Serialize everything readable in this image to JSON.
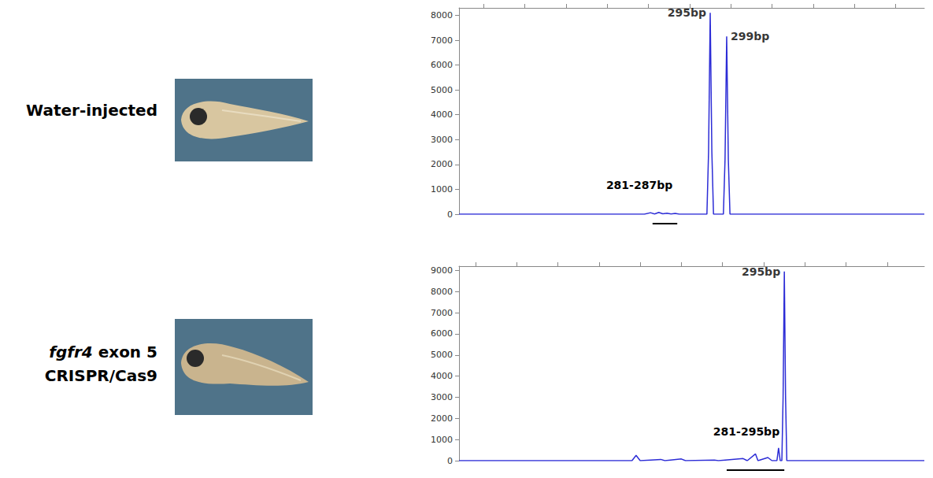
{
  "row_labels": [
    [
      [
        {
          "text": "Water-injected"
        }
      ]
    ],
    [
      [
        {
          "text": "fgfr4",
          "italic": true
        },
        {
          "text": " exon 5"
        }
      ],
      [
        {
          "text": "CRISPR/Cas9"
        }
      ]
    ]
  ],
  "chart_data": [
    {
      "type": "line",
      "color": "#2c2cd6",
      "grid": false,
      "tick_labels": "y",
      "xlim": [
        234,
        347
      ],
      "xticks": [
        240,
        250,
        260,
        270,
        280,
        290,
        300,
        310,
        320,
        330,
        340
      ],
      "ylim": [
        0,
        8300
      ],
      "yticks": [
        0,
        1000,
        2000,
        3000,
        4000,
        5000,
        6000,
        7000,
        8000
      ],
      "x": [
        234,
        279,
        280.5,
        281.5,
        282.5,
        283.5,
        284.5,
        285.5,
        286.5,
        287.5,
        294.2,
        294.6,
        295,
        295.4,
        295.8,
        298.2,
        298.6,
        299,
        299.4,
        299.8,
        347
      ],
      "values": [
        0,
        0,
        60,
        10,
        70,
        15,
        40,
        10,
        30,
        0,
        0,
        2500,
        8100,
        2500,
        0,
        0,
        2200,
        7150,
        2200,
        0,
        0
      ],
      "annotations": [
        {
          "text": "295bp",
          "x": 295,
          "y": 8100
        },
        {
          "text": "299bp",
          "x": 299,
          "y": 7150
        }
      ],
      "ranges": [
        {
          "text": "281-287bp",
          "from": 281,
          "to": 287
        }
      ]
    },
    {
      "type": "line",
      "color": "#2c2cd6",
      "grid": false,
      "tick_labels": "y",
      "xlim": [
        216,
        329
      ],
      "xticks": [
        220,
        230,
        240,
        250,
        260,
        270,
        280,
        290,
        300,
        310,
        320
      ],
      "ylim": [
        0,
        9200
      ],
      "yticks": [
        0,
        1000,
        2000,
        3000,
        4000,
        5000,
        6000,
        7000,
        8000,
        9000
      ],
      "x": [
        216,
        258,
        259,
        260,
        265,
        266,
        270,
        271,
        278,
        279,
        285,
        286,
        288,
        288.6,
        291,
        292,
        293.2,
        293.6,
        294,
        294.4,
        294.7,
        295,
        295.3,
        295.6,
        329
      ],
      "values": [
        0,
        0,
        250,
        0,
        60,
        0,
        80,
        0,
        30,
        0,
        100,
        0,
        320,
        0,
        150,
        0,
        0,
        600,
        0,
        0,
        3000,
        8950,
        3000,
        0,
        0
      ],
      "annotations": [
        {
          "text": "295bp",
          "x": 295,
          "y": 8950
        }
      ],
      "ranges": [
        {
          "text": "281-295bp",
          "from": 281,
          "to": 295
        }
      ]
    }
  ]
}
